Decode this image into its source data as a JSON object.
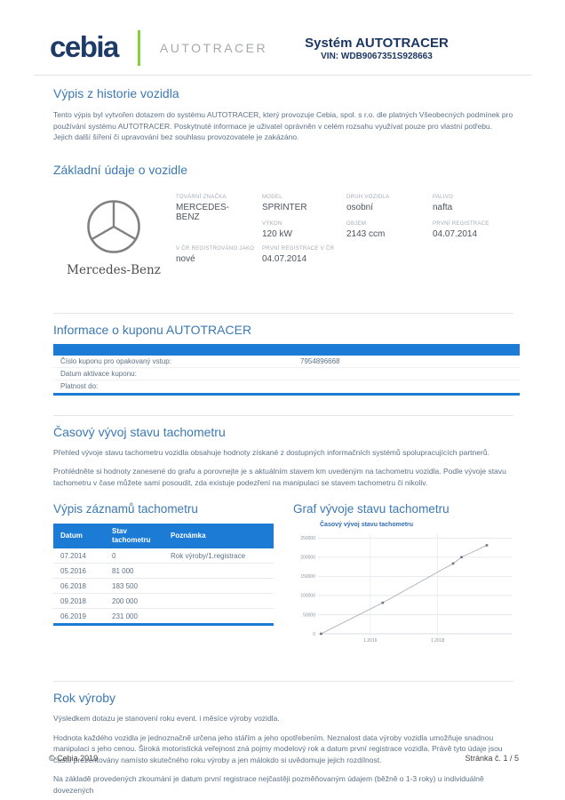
{
  "colors": {
    "navy": "#1c3664",
    "green": "#84d13d",
    "accent_blue": "#1b7bd5",
    "title_blue": "#3b79b5",
    "body_text": "#5e7287",
    "label_gray": "#a3adb6"
  },
  "header": {
    "logo_text": "cebia",
    "logo_sub": "AUTOTRACER",
    "system_title": "Systém AUTOTRACER",
    "vin_label": "VIN:",
    "vin_value": "WDB9067351S928663"
  },
  "intro": {
    "title": "Výpis z historie vozidla",
    "body": "Tento výpis byl vytvořen dotazem do systému AUTOTRACER, který provozuje Cebia, spol. s r.o. dle platných Všeobecných podmínek pro používání systému AUTOTRACER. Poskytnuté informace je uživatel oprávněn v celém rozsahu využívat pouze pro vlastní potřebu. Jejich další šíření či upravování bez souhlasu provozovatele je zakázáno."
  },
  "vehicle": {
    "title": "Základní údaje o vozidle",
    "brand_caption": "Mercedes-Benz",
    "fields": [
      {
        "label": "TOVÁRNÍ ZNAČKA",
        "value": "MERCEDES-BENZ"
      },
      {
        "label": "MODEL",
        "value": "SPRINTER"
      },
      {
        "label": "DRUH VOZIDLA",
        "value": "osobní"
      },
      {
        "label": "PALIVO",
        "value": "nafta"
      },
      {
        "label": "VÝKON",
        "value": "120 kW"
      },
      {
        "label": "OBJEM",
        "value": "2143 ccm"
      },
      {
        "label": "PRVNÍ REGISTRACE",
        "value": "04.07.2014"
      },
      {
        "label": "V ČR REGISTROVÁNO JAKO",
        "value": "nové"
      },
      {
        "label": "PRVNÍ REGISTRACE V ČR",
        "value": "04.07.2014"
      }
    ]
  },
  "coupon": {
    "title": "Informace o kuponu AUTOTRACER",
    "rows": [
      {
        "label": "Číslo kuponu pro opakovaný vstup:",
        "value": "7954896668"
      },
      {
        "label": "Datum aktivace kuponu:",
        "value": ""
      },
      {
        "label": "Platnost do:",
        "value": ""
      }
    ]
  },
  "tacho": {
    "title": "Časový vývoj stavu tachometru",
    "p1": "Přehled vývoje stavu tachometru vozidla obsahuje hodnoty získané z dostupných informačních systémů spolupracujících partnerů.",
    "p2": "Prohlédněte si hodnoty zanesené do grafu a porovnejte je s aktuálním stavem km uvedeným na tachometru vozidla. Podle vývoje stavu tachometru v čase můžete sami posoudit, zda existuje podezření na manipulaci se stavem tachometru či nikoliv.",
    "table_title": "Výpis záznamů tachometru",
    "table": {
      "headers": [
        "Datum",
        "Stav tachometru",
        "Poznámka"
      ],
      "rows": [
        [
          "07.2014",
          "0",
          "Rok výroby/1.registrace"
        ],
        [
          "05.2016",
          "81 000",
          ""
        ],
        [
          "06.2018",
          "183 500",
          ""
        ],
        [
          "09.2018",
          "200 000",
          ""
        ],
        [
          "06.2019",
          "231 000",
          ""
        ]
      ]
    },
    "chart_section_title": "Graf vývoje stavu tachometru"
  },
  "chart_data": {
    "type": "line",
    "title": "Časový vývoj stavu tachometru",
    "x": [
      2014.54,
      2016.37,
      2018.46,
      2018.71,
      2019.46
    ],
    "point_dates": [
      "07.2014",
      "05.2016",
      "06.2018",
      "09.2018",
      "06.2019"
    ],
    "values": [
      0,
      81000,
      183500,
      200000,
      231000
    ],
    "xticks": [
      {
        "x": 2016.0,
        "label": "1.2016"
      },
      {
        "x": 2018.0,
        "label": "1.2018"
      }
    ],
    "yticks": [
      0,
      50000,
      100000,
      150000,
      200000,
      250000
    ],
    "xlim": [
      2014.45,
      2020.2
    ],
    "ylim": [
      0,
      260000
    ],
    "grid": true,
    "legend": "none",
    "line_color": "#a8adb3",
    "marker_color": "#6b7280"
  },
  "rok_vyroby": {
    "title": "Rok výroby",
    "p1": "Výsledkem dotazu je stanovení roku event. i měsíce výroby vozidla.",
    "p2": "Hodnota každého vozidla je jednoznačně určena jeho stářím a jeho opotřebením. Neznalost data výroby vozidla umožňuje snadnou manipulaci s jeho cenou. Široká motoristická veřejnost zná pojmy modelový rok a datum první registrace vozidla. Právě tyto údaje jsou často prezentovány namísto skutečného roku výroby a jen málokdo si uvědomuje jejich rozdílnost.",
    "p3": "Na základě provedených zkoumání je datum první registrace nejčastěji pozměňovaným údajem (běžně o 1-3 roky) u individuálně dovezených"
  },
  "footer": {
    "left": "© Cebia 2019",
    "right": "Stránka č. 1 / 5"
  }
}
